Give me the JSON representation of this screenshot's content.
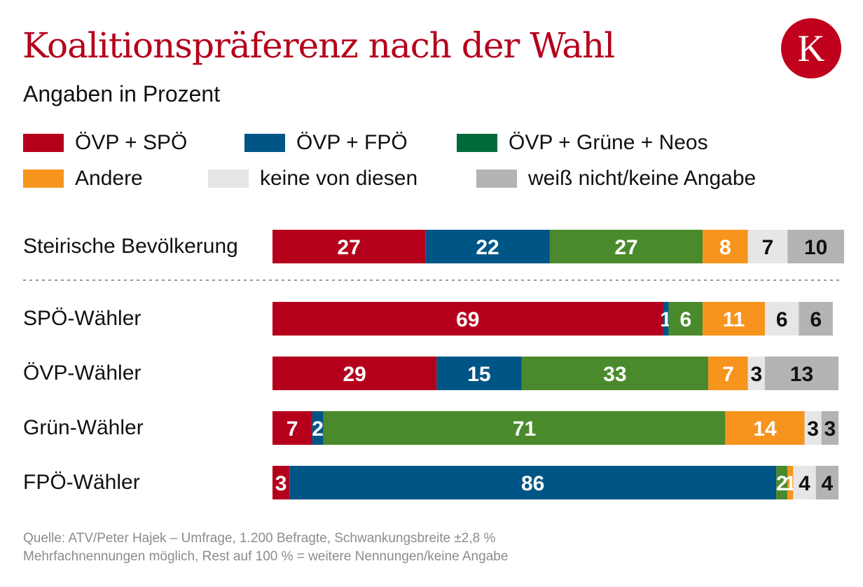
{
  "title": "Koalitionspräferenz nach der Wahl",
  "subtitle": "Angaben in Prozent",
  "logo": "K",
  "source_lines": [
    "Quelle: ATV/Peter Hajek – Umfrage, 1.200 Befragte, Schwankungsbreite ±2,8 %",
    "Mehrfachnennungen möglich, Rest auf 100 % = weitere Nennungen/keine Angabe"
  ],
  "chart_data": {
    "type": "bar",
    "orientation": "horizontal",
    "stacked": true,
    "title": "Koalitionspräferenz nach der Wahl",
    "subtitle": "Angaben in Prozent",
    "legend_placement": "top",
    "categories": [
      "Steirische Bevölkerung",
      "SPÖ-Wähler",
      "ÖVP-Wähler",
      "Grün-Wähler",
      "FPÖ-Wähler"
    ],
    "series": [
      {
        "name": "ÖVP + SPÖ",
        "color": "#b5001c",
        "label_color": "#ffffff",
        "legend_color": "#b5001c",
        "values": [
          27,
          69,
          29,
          7,
          3
        ]
      },
      {
        "name": "ÖVP + FPÖ",
        "color": "#005587",
        "label_color": "#ffffff",
        "legend_color": "#005587",
        "values": [
          22,
          1,
          15,
          2,
          86
        ]
      },
      {
        "name": "ÖVP + Grüne + Neos",
        "color": "#4a8a2c",
        "label_color": "#ffffff",
        "legend_color": "#006a3a",
        "values": [
          27,
          6,
          33,
          71,
          2
        ]
      },
      {
        "name": "Andere",
        "color": "#f7941d",
        "label_color": "#ffffff",
        "legend_color": "#f7941d",
        "values": [
          8,
          11,
          7,
          14,
          1
        ]
      },
      {
        "name": "keine von diesen",
        "color": "#e6e6e6",
        "label_color": "#111111",
        "legend_color": "#e6e6e6",
        "values": [
          7,
          6,
          3,
          3,
          4
        ]
      },
      {
        "name": "weiß nicht/keine Angabe",
        "color": "#b3b3b3",
        "label_color": "#111111",
        "legend_color": "#b3b3b3",
        "values": [
          10,
          6,
          13,
          3,
          4
        ]
      }
    ]
  }
}
